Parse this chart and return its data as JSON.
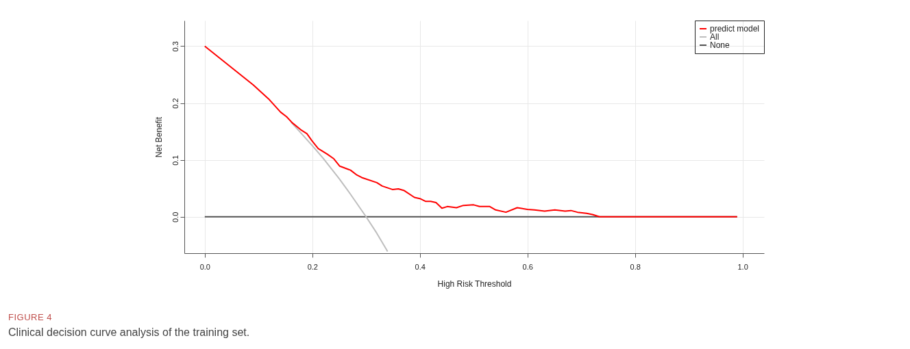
{
  "chart_data": {
    "type": "line",
    "xlabel": "High Risk Threshold",
    "ylabel": "Net Benefit",
    "xlim": [
      -0.038,
      1.04
    ],
    "ylim": [
      -0.064,
      0.345
    ],
    "xticks": [
      {
        "value": 0,
        "label": "0.0"
      },
      {
        "value": 0.2,
        "label": "0.2"
      },
      {
        "value": 0.4,
        "label": "0.4"
      },
      {
        "value": 0.6,
        "label": "0.6"
      },
      {
        "value": 0.8,
        "label": "0.8"
      },
      {
        "value": 1,
        "label": "1.0"
      }
    ],
    "yticks": [
      {
        "value": 0,
        "label": "0.0"
      },
      {
        "value": 0.1,
        "label": "0.1"
      },
      {
        "value": 0.2,
        "label": "0.2"
      },
      {
        "value": 0.3,
        "label": "0.3"
      }
    ],
    "grid": true,
    "legend": "top right",
    "marker": "none",
    "line_style": "solid",
    "series": [
      {
        "name": "None",
        "color": "#555555",
        "x": [
          0,
          0.99
        ],
        "values": [
          0,
          0
        ]
      },
      {
        "name": "All",
        "color": "#bebebe",
        "x": [
          0.16,
          0.18,
          0.2,
          0.22,
          0.25,
          0.27,
          0.3,
          0.32,
          0.34
        ],
        "values": [
          0.167,
          0.146,
          0.125,
          0.103,
          0.067,
          0.041,
          0.0,
          -0.029,
          -0.061
        ]
      },
      {
        "name": "predict model",
        "color": "#ff0000",
        "x": [
          0,
          0.09,
          0.12,
          0.141,
          0.152,
          0.163,
          0.18,
          0.19,
          0.199,
          0.211,
          0.228,
          0.24,
          0.251,
          0.271,
          0.282,
          0.292,
          0.32,
          0.33,
          0.349,
          0.36,
          0.371,
          0.39,
          0.4,
          0.411,
          0.42,
          0.43,
          0.441,
          0.451,
          0.468,
          0.481,
          0.5,
          0.511,
          0.53,
          0.541,
          0.56,
          0.581,
          0.6,
          0.613,
          0.632,
          0.651,
          0.67,
          0.681,
          0.693,
          0.71,
          0.721,
          0.734,
          0.99
        ],
        "values": [
          0.3,
          0.232,
          0.206,
          0.184,
          0.176,
          0.165,
          0.152,
          0.146,
          0.134,
          0.12,
          0.11,
          0.102,
          0.089,
          0.082,
          0.074,
          0.069,
          0.06,
          0.054,
          0.048,
          0.049,
          0.046,
          0.034,
          0.032,
          0.027,
          0.027,
          0.025,
          0.015,
          0.018,
          0.016,
          0.02,
          0.021,
          0.018,
          0.018,
          0.012,
          0.008,
          0.016,
          0.013,
          0.012,
          0.01,
          0.012,
          0.01,
          0.011,
          0.008,
          0.006,
          0.004,
          0,
          0
        ]
      }
    ],
    "annotations": [
      "FIGURE 4",
      "Clinical decision curve analysis of the training set."
    ]
  }
}
